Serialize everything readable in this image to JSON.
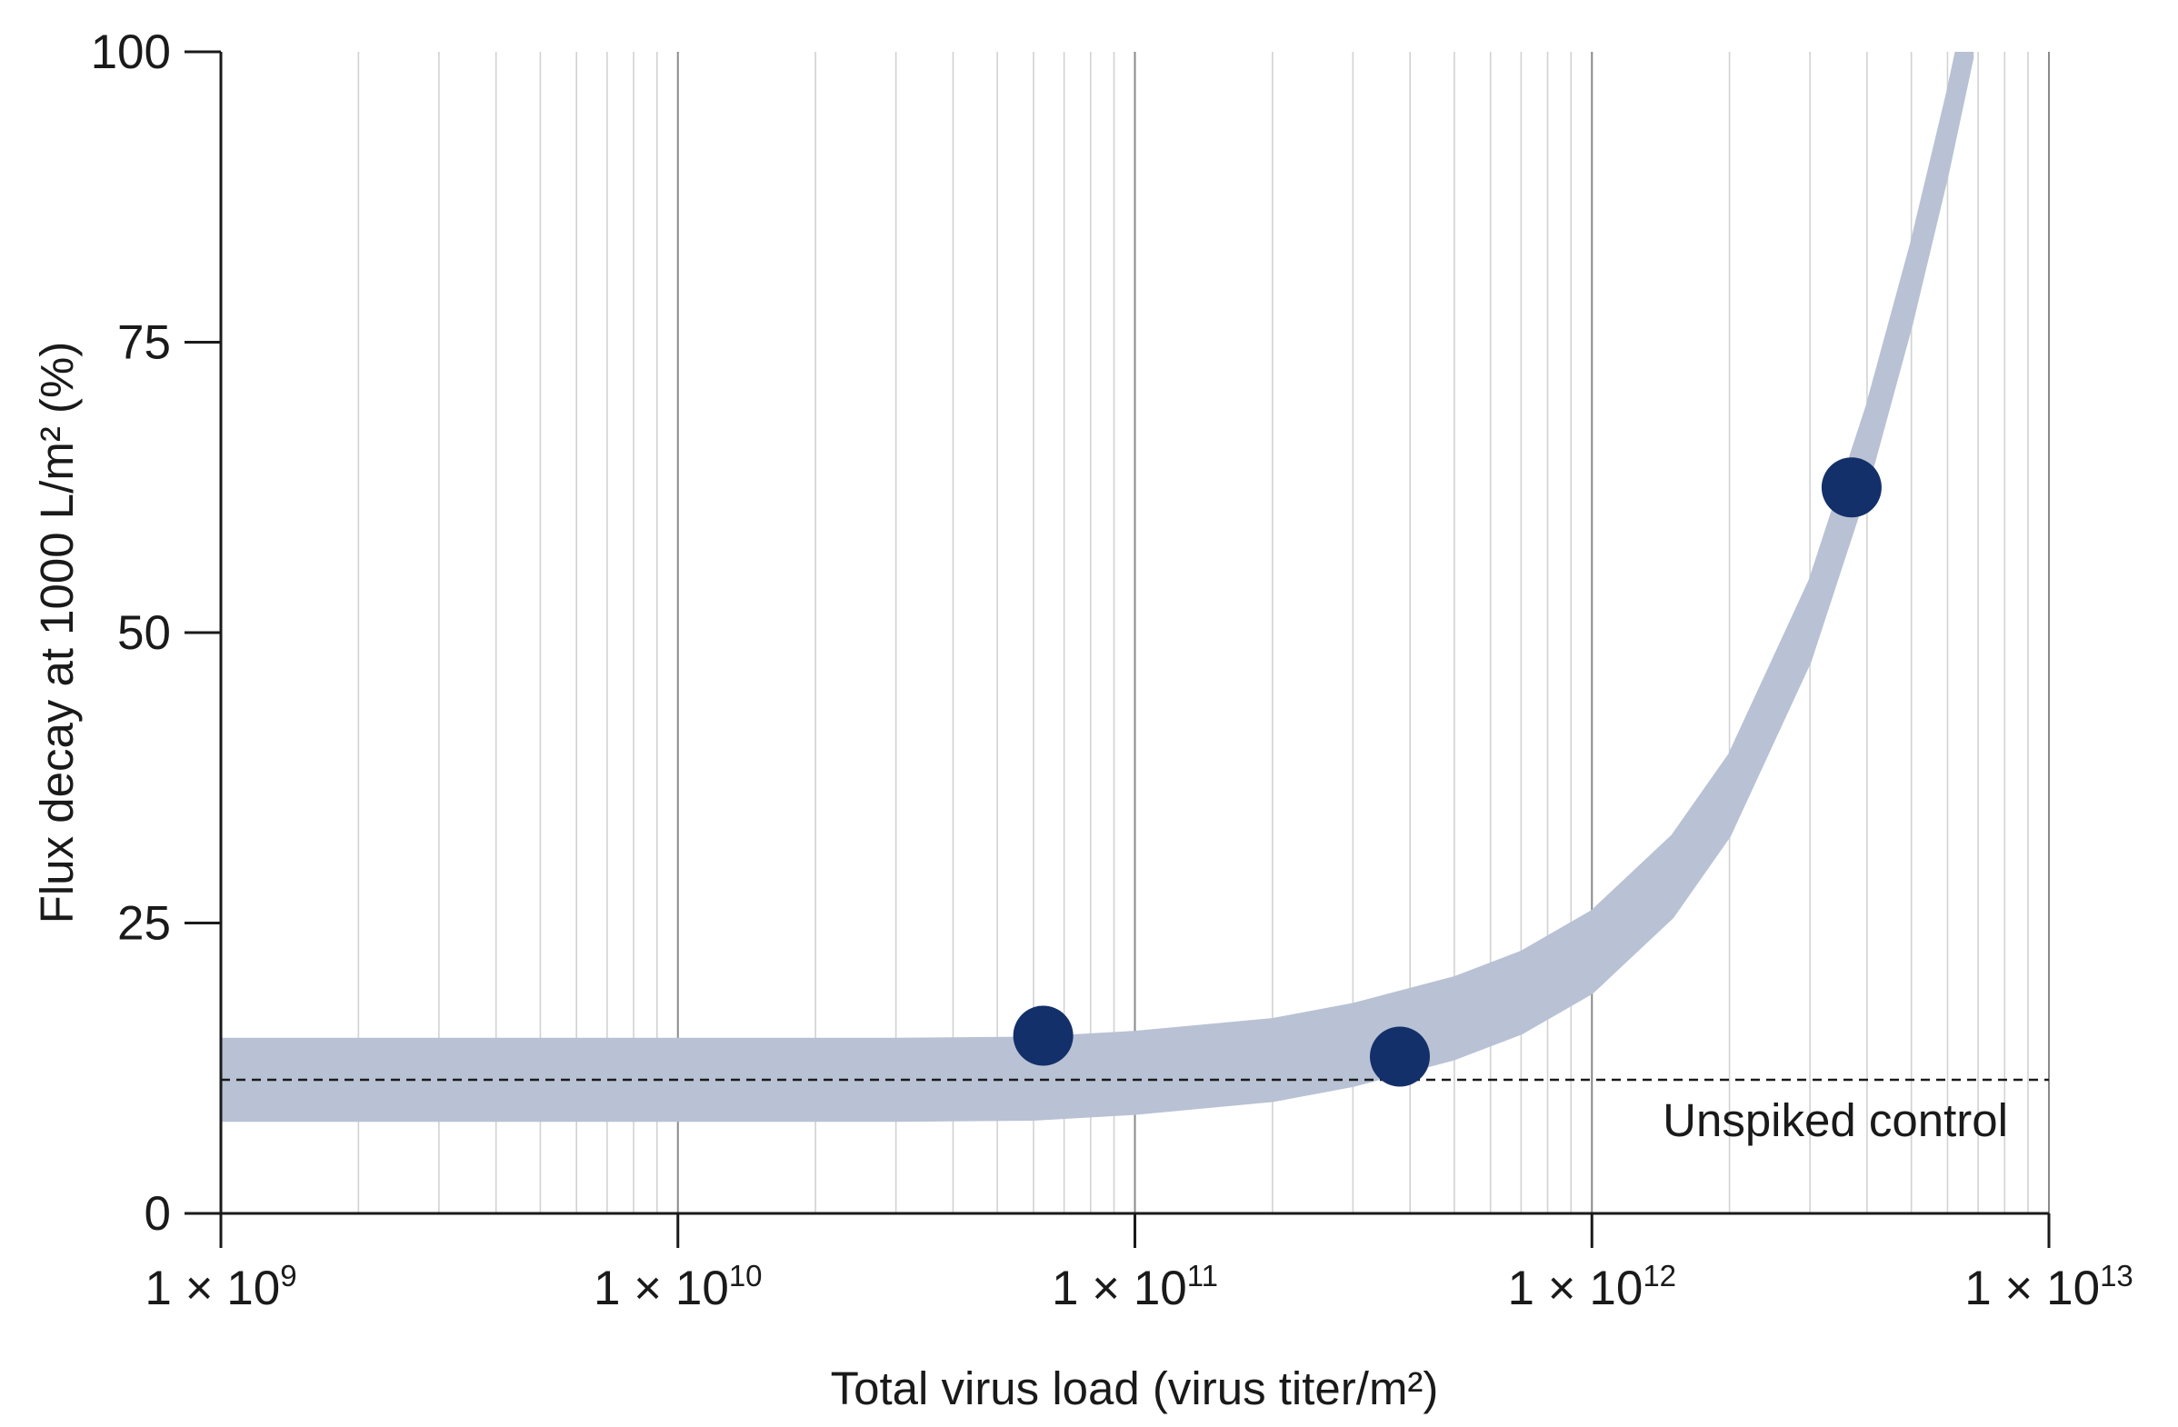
{
  "chart_data": {
    "type": "scatter",
    "x_scale": "log",
    "xlim": [
      1000000000.0,
      10000000000000.0
    ],
    "ylim": [
      0,
      100
    ],
    "grid": true,
    "xlabel": "Total virus load (virus titer/m²)",
    "ylabel": "Flux decay at 1000 L/m² (%)",
    "x_ticks": [
      {
        "value": 1000000000.0,
        "base": "1 × 10",
        "exp": "9"
      },
      {
        "value": 10000000000.0,
        "base": "1 × 10",
        "exp": "10"
      },
      {
        "value": 100000000000.0,
        "base": "1 × 10",
        "exp": "11"
      },
      {
        "value": 1000000000000.0,
        "base": "1 × 10",
        "exp": "12"
      },
      {
        "value": 10000000000000.0,
        "base": "1 × 10",
        "exp": "13"
      }
    ],
    "y_ticks": [
      0,
      25,
      50,
      75,
      100
    ],
    "series": [
      {
        "type": "scatter",
        "color": "#14306a",
        "points": [
          {
            "x": 63000000000.0,
            "y": 15.3
          },
          {
            "x": 380000000000.0,
            "y": 13.5
          },
          {
            "x": 3700000000000.0,
            "y": 62.5
          }
        ]
      }
    ],
    "trend_band": {
      "color": "#b8c2d4",
      "half_width": 3.5,
      "points": [
        {
          "x": 1000000000.0,
          "y": 11.5
        },
        {
          "x": 30000000000.0,
          "y": 11.5
        },
        {
          "x": 60000000000.0,
          "y": 11.6
        },
        {
          "x": 100000000000.0,
          "y": 12.1
        },
        {
          "x": 200000000000.0,
          "y": 13.2
        },
        {
          "x": 300000000000.0,
          "y": 14.5
        },
        {
          "x": 500000000000.0,
          "y": 16.8
        },
        {
          "x": 700000000000.0,
          "y": 19.0
        },
        {
          "x": 1000000000000.0,
          "y": 22.5
        },
        {
          "x": 1500000000000.0,
          "y": 29.0
        },
        {
          "x": 2000000000000.0,
          "y": 36.0
        },
        {
          "x": 3000000000000.0,
          "y": 51.0
        },
        {
          "x": 4000000000000.0,
          "y": 66.0
        },
        {
          "x": 5000000000000.0,
          "y": 80.0
        },
        {
          "x": 6000000000000.0,
          "y": 93.0
        },
        {
          "x": 6800000000000.0,
          "y": 103.0
        }
      ]
    },
    "reference_line": {
      "label": "Unspiked control",
      "y": 11.5,
      "style": "dashed"
    }
  }
}
